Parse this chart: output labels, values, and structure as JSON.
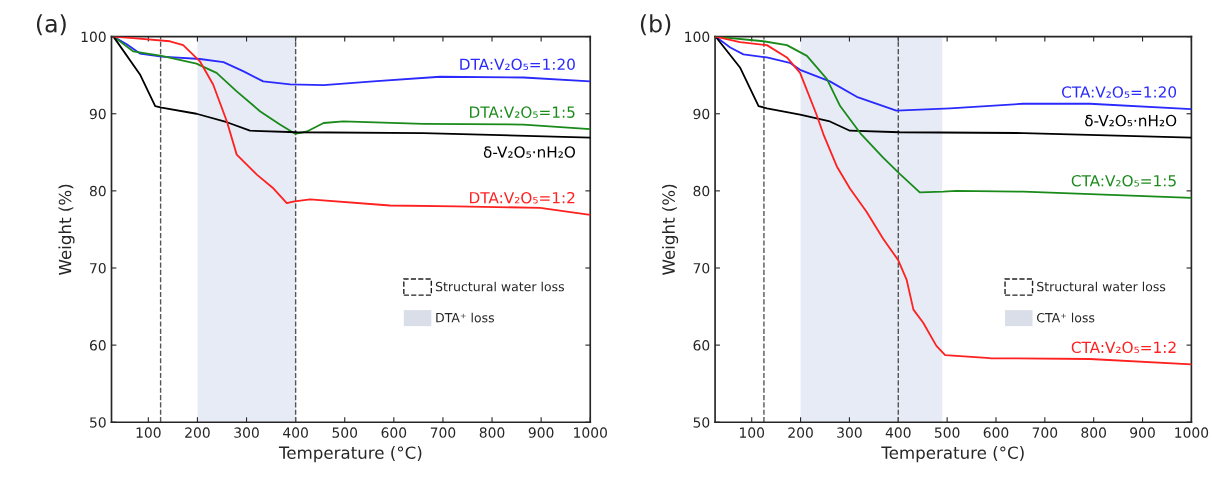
{
  "chart_data": [
    {
      "type": "line",
      "title": "(a)",
      "xlabel": "Temperature (°C)",
      "ylabel": "Weight (%)",
      "xlim": [
        25,
        1000
      ],
      "ylim": [
        50,
        100
      ],
      "xticks": [
        100,
        200,
        300,
        400,
        500,
        600,
        700,
        800,
        900,
        1000
      ],
      "yticks": [
        50,
        60,
        70,
        80,
        90,
        100
      ],
      "grid": false,
      "legend": "right",
      "line_style": "solid",
      "annotations": [
        "Structural water loss",
        "DTA⁺ loss"
      ],
      "ref_lines": [
        {
          "axis": "x",
          "value": 125,
          "line_style": "dashed",
          "color": "#555555"
        },
        {
          "axis": "x",
          "value": 400,
          "line_style": "dashed",
          "color": "#555555"
        }
      ],
      "bands": [
        {
          "axis": "x",
          "from": 200,
          "to": 400,
          "color": "#e6ebf6"
        }
      ],
      "series": [
        {
          "name": "DTA:V₂O₅=1:20",
          "color": "#2a2aff",
          "x": [
            29,
            56,
            83,
            127,
            205,
            253,
            294,
            334,
            389,
            457,
            558,
            694,
            864,
            1000
          ],
          "values": [
            100,
            99,
            97.8,
            97.4,
            97.1,
            96.7,
            95.5,
            94.2,
            93.8,
            93.7,
            94.2,
            94.8,
            94.7,
            94.2
          ]
        },
        {
          "name": "DTA:V₂O₅=1:5",
          "color": "#1a8a1a",
          "x": [
            29,
            69,
            127,
            198,
            239,
            280,
            328,
            368,
            399,
            423,
            457,
            497,
            660,
            864,
            1000
          ],
          "values": [
            100,
            98.1,
            97.5,
            96.5,
            95.3,
            92.9,
            90.3,
            88.6,
            87.4,
            87.7,
            88.8,
            89.0,
            88.7,
            88.6,
            88.0
          ]
        },
        {
          "name": "δ-V₂O₅·nH₂O",
          "color": "#000000",
          "x": [
            29,
            83,
            114,
            127,
            198,
            260,
            307,
            402,
            660,
            1000
          ],
          "values": [
            100,
            95.1,
            91.0,
            90.8,
            90.0,
            88.9,
            87.8,
            87.6,
            87.5,
            86.9
          ]
        },
        {
          "name": "DTA:V₂O₅=1:2",
          "color": "#ff2020",
          "x": [
            29,
            69,
            144,
            171,
            205,
            232,
            260,
            280,
            321,
            355,
            382,
            395,
            429,
            592,
            728,
            898,
            1000
          ],
          "values": [
            100,
            99.8,
            99.4,
            98.9,
            96.8,
            93.8,
            89.0,
            84.7,
            82.1,
            80.3,
            78.4,
            78.6,
            78.9,
            78.1,
            78.0,
            77.8,
            76.9
          ]
        }
      ]
    },
    {
      "type": "line",
      "title": "(b)",
      "xlabel": "Temperature (°C)",
      "ylabel": "Weight (%)",
      "xlim": [
        25,
        1000
      ],
      "ylim": [
        50,
        100
      ],
      "xticks": [
        100,
        200,
        300,
        400,
        500,
        600,
        700,
        800,
        900,
        1000
      ],
      "yticks": [
        50,
        60,
        70,
        80,
        90,
        100
      ],
      "grid": false,
      "legend": "right",
      "line_style": "solid",
      "annotations": [
        "Structural water loss",
        "CTA⁺ loss"
      ],
      "ref_lines": [
        {
          "axis": "x",
          "value": 125,
          "line_style": "dashed",
          "color": "#555555"
        },
        {
          "axis": "x",
          "value": 400,
          "line_style": "dashed",
          "color": "#555555"
        }
      ],
      "bands": [
        {
          "axis": "x",
          "from": 200,
          "to": 490,
          "color": "#e6ebf6"
        }
      ],
      "series": [
        {
          "name": "CTA:V₂O₅=1:20",
          "color": "#2a2aff",
          "x": [
            26,
            56,
            83,
            131,
            178,
            199,
            260,
            315,
            396,
            506,
            656,
            792,
            1000
          ],
          "values": [
            100,
            98.6,
            97.7,
            97.3,
            96.6,
            95.7,
            94.2,
            92.2,
            90.4,
            90.7,
            91.3,
            91.3,
            90.6
          ]
        },
        {
          "name": "δ-V₂O₅·nH₂O",
          "color": "#000000",
          "x": [
            26,
            76,
            114,
            131,
            199,
            260,
            301,
            403,
            656,
            1000
          ],
          "values": [
            100,
            96,
            91,
            90.7,
            89.9,
            89.0,
            87.8,
            87.6,
            87.5,
            86.9
          ]
        },
        {
          "name": "CTA:V₂O₅=1:5",
          "color": "#1a8a1a",
          "x": [
            26,
            124,
            172,
            213,
            254,
            281,
            322,
            369,
            403,
            444,
            492,
            519,
            656,
            1000
          ],
          "values": [
            100,
            99.4,
            98.9,
            97.5,
            94.5,
            91.0,
            87.5,
            84.3,
            82.2,
            79.8,
            79.9,
            80.0,
            79.9,
            79.1
          ]
        },
        {
          "name": "CTA:V₂O₅=1:2",
          "color": "#ff2020",
          "x": [
            26,
            76,
            131,
            172,
            199,
            232,
            247,
            274,
            301,
            335,
            369,
            400,
            417,
            431,
            451,
            478,
            496,
            588,
            792,
            1000
          ],
          "values": [
            100,
            99.3,
            98.9,
            97.3,
            95.3,
            90.0,
            87.3,
            83.2,
            80.3,
            77.3,
            73.8,
            71.0,
            68.5,
            64.6,
            62.9,
            59.9,
            58.7,
            58.3,
            58.2,
            57.5
          ]
        }
      ]
    }
  ]
}
